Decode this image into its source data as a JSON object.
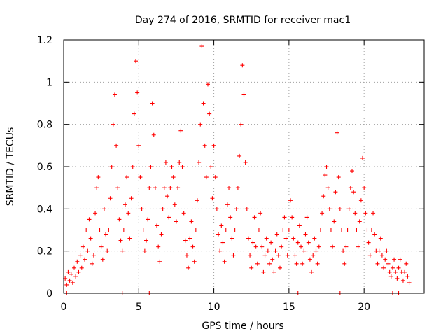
{
  "chart_data": {
    "type": "scatter",
    "title": "Day 274 of 2016, SRMTID for receiver mac1",
    "xlabel": "GPS time / hours",
    "ylabel": "SRMTID / TECUs",
    "xlim": [
      0,
      24
    ],
    "ylim": [
      0,
      1.2
    ],
    "xticks": [
      0,
      5,
      10,
      15,
      20
    ],
    "yticks": [
      0,
      0.2,
      0.4,
      0.6,
      0.8,
      1,
      1.2
    ],
    "xtick_labels": [
      "0",
      "5",
      "10",
      "15",
      "20"
    ],
    "ytick_labels": [
      "0",
      "0.2",
      "0.4",
      "0.6",
      "0.8",
      "1",
      "1.2"
    ],
    "grid": true,
    "marker": "+",
    "color": "#ff0000",
    "series": [
      {
        "name": "SRMTID",
        "points": [
          [
            0.1,
            0.07
          ],
          [
            0.2,
            0.04
          ],
          [
            0.3,
            0.1
          ],
          [
            0.4,
            0.06
          ],
          [
            0.5,
            0.09
          ],
          [
            0.6,
            0.05
          ],
          [
            0.7,
            0.12
          ],
          [
            0.8,
            0.08
          ],
          [
            0.9,
            0.15
          ],
          [
            1.0,
            0.1
          ],
          [
            1.1,
            0.18
          ],
          [
            1.2,
            0.12
          ],
          [
            1.3,
            0.22
          ],
          [
            1.4,
            0.16
          ],
          [
            1.5,
            0.3
          ],
          [
            1.6,
            0.2
          ],
          [
            1.7,
            0.35
          ],
          [
            1.8,
            0.26
          ],
          [
            1.9,
            0.14
          ],
          [
            2.0,
            0.18
          ],
          [
            2.1,
            0.38
          ],
          [
            2.2,
            0.5
          ],
          [
            2.3,
            0.55
          ],
          [
            2.4,
            0.3
          ],
          [
            2.5,
            0.22
          ],
          [
            2.6,
            0.16
          ],
          [
            2.7,
            0.4
          ],
          [
            2.8,
            0.28
          ],
          [
            2.9,
            0.2
          ],
          [
            3.0,
            0.3
          ],
          [
            3.1,
            0.45
          ],
          [
            3.2,
            0.6
          ],
          [
            3.3,
            0.8
          ],
          [
            3.4,
            0.94
          ],
          [
            3.5,
            0.7
          ],
          [
            3.6,
            0.5
          ],
          [
            3.7,
            0.35
          ],
          [
            3.8,
            0.25
          ],
          [
            3.9,
            0.2
          ],
          [
            4.0,
            0.3
          ],
          [
            4.1,
            0.42
          ],
          [
            4.2,
            0.55
          ],
          [
            4.3,
            0.38
          ],
          [
            4.4,
            0.26
          ],
          [
            4.5,
            0.45
          ],
          [
            4.6,
            0.6
          ],
          [
            4.7,
            0.85
          ],
          [
            4.8,
            1.1
          ],
          [
            4.9,
            0.95
          ],
          [
            5.0,
            0.7
          ],
          [
            5.1,
            0.55
          ],
          [
            5.2,
            0.4
          ],
          [
            5.3,
            0.3
          ],
          [
            5.4,
            0.2
          ],
          [
            5.5,
            0.25
          ],
          [
            5.6,
            0.35
          ],
          [
            5.7,
            0.5
          ],
          [
            5.8,
            0.6
          ],
          [
            5.9,
            0.9
          ],
          [
            6.0,
            0.75
          ],
          [
            6.1,
            0.5
          ],
          [
            6.2,
            0.32
          ],
          [
            6.3,
            0.22
          ],
          [
            6.4,
            0.15
          ],
          [
            6.5,
            0.28
          ],
          [
            6.6,
            0.4
          ],
          [
            6.7,
            0.5
          ],
          [
            6.8,
            0.62
          ],
          [
            6.9,
            0.46
          ],
          [
            7.0,
            0.36
          ],
          [
            7.1,
            0.5
          ],
          [
            7.2,
            0.6
          ],
          [
            7.3,
            0.55
          ],
          [
            7.4,
            0.42
          ],
          [
            7.5,
            0.34
          ],
          [
            7.6,
            0.5
          ],
          [
            7.7,
            0.62
          ],
          [
            7.8,
            0.77
          ],
          [
            7.9,
            0.6
          ],
          [
            8.0,
            0.38
          ],
          [
            8.1,
            0.25
          ],
          [
            8.2,
            0.18
          ],
          [
            8.3,
            0.12
          ],
          [
            8.4,
            0.26
          ],
          [
            8.5,
            0.34
          ],
          [
            8.6,
            0.22
          ],
          [
            8.7,
            0.15
          ],
          [
            8.8,
            0.3
          ],
          [
            8.9,
            0.44
          ],
          [
            9.0,
            0.62
          ],
          [
            9.1,
            0.8
          ],
          [
            9.2,
            1.17
          ],
          [
            9.3,
            0.9
          ],
          [
            9.4,
            0.7
          ],
          [
            9.5,
            0.55
          ],
          [
            9.6,
            0.99
          ],
          [
            9.7,
            0.85
          ],
          [
            9.8,
            0.6
          ],
          [
            9.9,
            0.45
          ],
          [
            10.0,
            0.7
          ],
          [
            10.1,
            0.55
          ],
          [
            10.2,
            0.4
          ],
          [
            10.3,
            0.28
          ],
          [
            10.4,
            0.2
          ],
          [
            10.5,
            0.32
          ],
          [
            10.6,
            0.24
          ],
          [
            10.7,
            0.15
          ],
          [
            10.8,
            0.3
          ],
          [
            10.9,
            0.42
          ],
          [
            11.0,
            0.5
          ],
          [
            11.1,
            0.36
          ],
          [
            11.2,
            0.26
          ],
          [
            11.3,
            0.18
          ],
          [
            11.4,
            0.3
          ],
          [
            11.5,
            0.4
          ],
          [
            11.6,
            0.5
          ],
          [
            11.7,
            0.65
          ],
          [
            11.8,
            0.8
          ],
          [
            11.9,
            1.08
          ],
          [
            12.0,
            0.94
          ],
          [
            12.1,
            0.62
          ],
          [
            12.2,
            0.4
          ],
          [
            12.3,
            0.26
          ],
          [
            12.4,
            0.18
          ],
          [
            12.5,
            0.12
          ],
          [
            12.6,
            0.24
          ],
          [
            12.7,
            0.36
          ],
          [
            12.8,
            0.22
          ],
          [
            12.9,
            0.14
          ],
          [
            13.0,
            0.3
          ],
          [
            13.1,
            0.38
          ],
          [
            13.2,
            0.22
          ],
          [
            13.3,
            0.1
          ],
          [
            13.4,
            0.18
          ],
          [
            13.5,
            0.26
          ],
          [
            13.6,
            0.2
          ],
          [
            13.7,
            0.14
          ],
          [
            13.8,
            0.24
          ],
          [
            13.9,
            0.16
          ],
          [
            14.0,
            0.1
          ],
          [
            14.1,
            0.2
          ],
          [
            14.2,
            0.28
          ],
          [
            14.3,
            0.18
          ],
          [
            14.4,
            0.12
          ],
          [
            14.5,
            0.22
          ],
          [
            14.6,
            0.3
          ],
          [
            14.7,
            0.36
          ],
          [
            14.8,
            0.26
          ],
          [
            14.9,
            0.18
          ],
          [
            15.0,
            0.3
          ],
          [
            15.1,
            0.44
          ],
          [
            15.2,
            0.36
          ],
          [
            15.3,
            0.26
          ],
          [
            15.4,
            0.18
          ],
          [
            15.5,
            0.14
          ],
          [
            15.6,
            0.24
          ],
          [
            15.7,
            0.32
          ],
          [
            15.8,
            0.22
          ],
          [
            15.9,
            0.14
          ],
          [
            16.0,
            0.2
          ],
          [
            16.1,
            0.28
          ],
          [
            16.2,
            0.36
          ],
          [
            16.3,
            0.24
          ],
          [
            16.4,
            0.16
          ],
          [
            16.5,
            0.1
          ],
          [
            16.6,
            0.18
          ],
          [
            16.7,
            0.26
          ],
          [
            16.8,
            0.2
          ],
          [
            16.9,
            0.14
          ],
          [
            17.0,
            0.22
          ],
          [
            17.1,
            0.3
          ],
          [
            17.2,
            0.38
          ],
          [
            17.3,
            0.46
          ],
          [
            17.4,
            0.56
          ],
          [
            17.5,
            0.6
          ],
          [
            17.6,
            0.5
          ],
          [
            17.7,
            0.4
          ],
          [
            17.8,
            0.3
          ],
          [
            17.9,
            0.22
          ],
          [
            18.0,
            0.34
          ],
          [
            18.1,
            0.48
          ],
          [
            18.2,
            0.76
          ],
          [
            18.3,
            0.55
          ],
          [
            18.4,
            0.4
          ],
          [
            18.5,
            0.3
          ],
          [
            18.6,
            0.2
          ],
          [
            18.7,
            0.14
          ],
          [
            18.8,
            0.22
          ],
          [
            18.9,
            0.3
          ],
          [
            19.0,
            0.4
          ],
          [
            19.1,
            0.5
          ],
          [
            19.2,
            0.58
          ],
          [
            19.3,
            0.48
          ],
          [
            19.4,
            0.38
          ],
          [
            19.5,
            0.3
          ],
          [
            19.6,
            0.22
          ],
          [
            19.7,
            0.34
          ],
          [
            19.8,
            0.44
          ],
          [
            19.9,
            0.64
          ],
          [
            20.0,
            0.5
          ],
          [
            20.1,
            0.38
          ],
          [
            20.2,
            0.3
          ],
          [
            20.3,
            0.24
          ],
          [
            20.4,
            0.18
          ],
          [
            20.5,
            0.3
          ],
          [
            20.6,
            0.38
          ],
          [
            20.7,
            0.28
          ],
          [
            20.8,
            0.2
          ],
          [
            20.9,
            0.14
          ],
          [
            21.0,
            0.2
          ],
          [
            21.1,
            0.26
          ],
          [
            21.2,
            0.18
          ],
          [
            21.3,
            0.12
          ],
          [
            21.4,
            0.16
          ],
          [
            21.5,
            0.2
          ],
          [
            21.6,
            0.14
          ],
          [
            21.7,
            0.1
          ],
          [
            21.8,
            0.08
          ],
          [
            21.9,
            0.12
          ],
          [
            22.0,
            0.16
          ],
          [
            22.1,
            0.1
          ],
          [
            22.2,
            0.07
          ],
          [
            22.3,
            0.12
          ],
          [
            22.4,
            0.16
          ],
          [
            22.5,
            0.1
          ],
          [
            22.6,
            0.06
          ],
          [
            22.7,
            0.1
          ],
          [
            22.8,
            0.14
          ],
          [
            22.9,
            0.08
          ],
          [
            23.0,
            0.05
          ],
          [
            0.2,
            0.0
          ],
          [
            3.9,
            0.0
          ],
          [
            5.7,
            0.0
          ],
          [
            15.6,
            0.0
          ],
          [
            18.4,
            0.0
          ],
          [
            21.9,
            0.0
          ],
          [
            22.3,
            0.0
          ]
        ]
      }
    ]
  }
}
